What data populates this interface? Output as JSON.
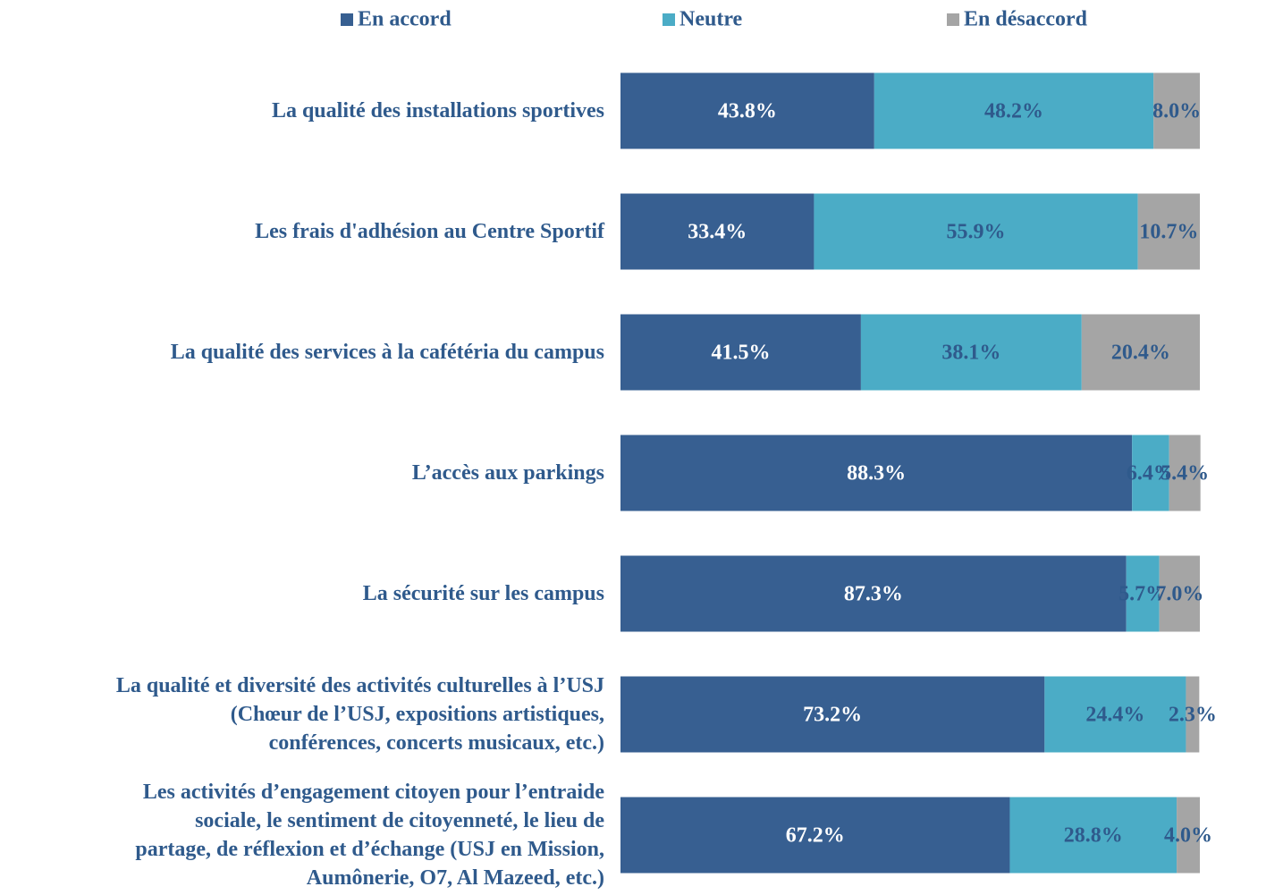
{
  "chart_data": {
    "type": "stacked_bar_horizontal",
    "categories": [
      "La qualité des installations sportives",
      "Les frais d'adhésion au Centre Sportif",
      "La qualité des services à la cafétéria du campus",
      "L’accès aux parkings",
      "La sécurité sur les campus",
      "La qualité et diversité des activités culturelles à l’USJ\n(Chœur de l’USJ, expositions artistiques,\nconférences, concerts musicaux, etc.)",
      "Les activités d’engagement citoyen pour l’entraide\nsociale, le sentiment de citoyenneté, le lieu de\npartage, de réflexion et d’échange (USJ en Mission,\nAumônerie, O7, Al Mazeed, etc.)"
    ],
    "series": [
      {
        "name": "En accord",
        "color": "#375f91",
        "label_color": "#ffffff",
        "values": [
          43.8,
          33.4,
          41.5,
          88.3,
          87.3,
          73.2,
          67.2
        ],
        "value_labels": [
          "43.8%",
          "33.4%",
          "41.5%",
          "88.3%",
          "87.3%",
          "73.2%",
          "67.2%"
        ]
      },
      {
        "name": "Neutre",
        "color": "#4bacc6",
        "label_color": "#2f5a8c",
        "values": [
          48.2,
          55.9,
          38.1,
          6.4,
          5.7,
          24.4,
          28.8
        ],
        "value_labels": [
          "48.2%",
          "55.9%",
          "38.1%",
          "6.4%",
          "5.7%",
          "24.4%",
          "28.8%"
        ]
      },
      {
        "name": "En désaccord",
        "color": "#a5a5a5",
        "label_color": "#2f5a8c",
        "values": [
          8.0,
          10.7,
          20.4,
          5.4,
          7.0,
          2.3,
          4.0
        ],
        "value_labels": [
          "8.0%",
          "10.7%",
          "20.4%",
          "5.4%",
          "7.0%",
          "2.3%",
          "4.0%"
        ]
      }
    ],
    "xlim": [
      0,
      100
    ],
    "legend": "top"
  }
}
